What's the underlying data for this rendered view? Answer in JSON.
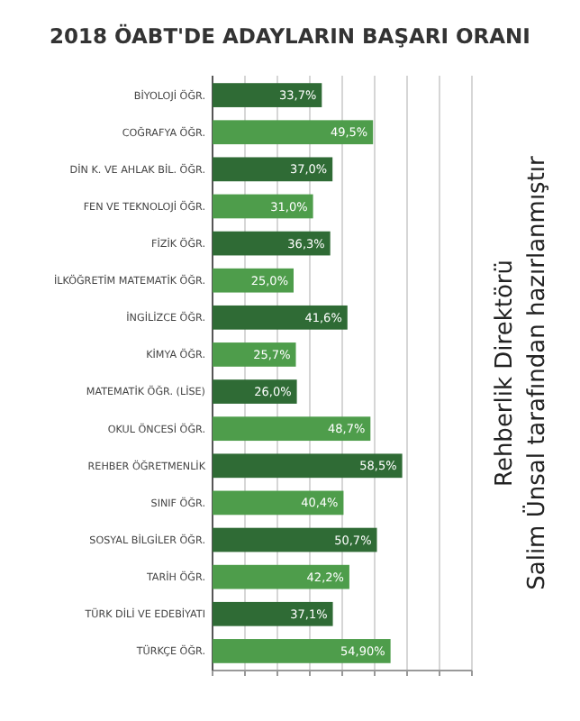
{
  "chart_data": {
    "type": "bar",
    "orientation": "horizontal",
    "title": "2018 ÖABT'DE ADAYLARIN BAŞARI ORANI",
    "categories": [
      "BİYOLOJİ ÖĞR.",
      "COĞRAFYA ÖĞR.",
      "DİN K. VE AHLAK BİL. ÖĞR.",
      "FEN VE TEKNOLOJİ ÖĞR.",
      "FİZİK ÖĞR.",
      "İLKÖĞRETİM MATEMATİK ÖĞR.",
      "İNGİLİZCE ÖĞR.",
      "KİMYA ÖĞR.",
      "MATEMATİK ÖĞR. (LİSE)",
      "OKUL ÖNCESİ ÖĞR.",
      "REHBER ÖĞRETMENLİK",
      "SINIF ÖĞR.",
      "SOSYAL BİLGİLER ÖĞR.",
      "TARİH ÖĞR.",
      "TÜRK DİLİ VE EDEBİYATI",
      "TÜRKÇE ÖĞR."
    ],
    "values": [
      33.7,
      49.5,
      37.0,
      31.0,
      36.3,
      25.0,
      41.6,
      25.7,
      26.0,
      48.7,
      58.5,
      40.4,
      50.7,
      42.2,
      37.1,
      54.9
    ],
    "value_labels": [
      "33,7%",
      "49,5%",
      "37,0%",
      "31,0%",
      "36,3%",
      "25,0%",
      "41,6%",
      "25,7%",
      "26,0%",
      "48,7%",
      "58,5%",
      "40,4%",
      "50,7%",
      "42,2%",
      "37,1%",
      "54,90%"
    ],
    "colors": [
      "#2f6b35",
      "#4e9d4b",
      "#2f6b35",
      "#4e9d4b",
      "#2f6b35",
      "#4e9d4b",
      "#2f6b35",
      "#4e9d4b",
      "#2f6b35",
      "#4e9d4b",
      "#2f6b35",
      "#4e9d4b",
      "#2f6b35",
      "#4e9d4b",
      "#2f6b35",
      "#4e9d4b"
    ],
    "xlim": [
      0,
      80
    ],
    "xticks": [
      {
        "value": 0,
        "label": null
      },
      {
        "value": 10,
        "label": null
      },
      {
        "value": 20,
        "label": null
      },
      {
        "value": 30,
        "label": null
      },
      {
        "value": 40,
        "label": null
      },
      {
        "value": 50,
        "label": null
      },
      {
        "value": 60,
        "label": null
      },
      {
        "value": 70,
        "label": null
      },
      {
        "value": 80,
        "label": null
      }
    ],
    "grid": "x",
    "annotations": [
      "Rehberlik Direktörü",
      "Salim Ünsal tarafından hazırlanmıştır"
    ]
  }
}
